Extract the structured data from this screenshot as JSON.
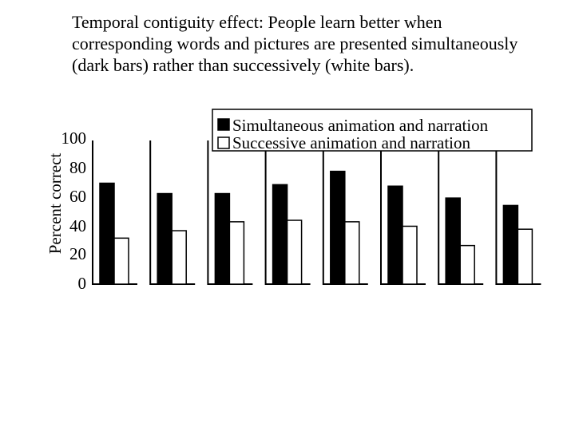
{
  "title_lines": [
    "Temporal contiguity effect:  People learn better when",
    "corresponding words and pictures are presented simultaneously",
    "(dark bars) rather than successively (white bars)."
  ],
  "chart_data": {
    "type": "bar",
    "title": "Temporal contiguity effect:  People learn better when corresponding words and pictures are presented simultaneously (dark bars) rather than successively (white bars).",
    "xlabel": "",
    "ylabel": "Percent correct",
    "ylim": [
      0,
      100
    ],
    "yticks": [
      0,
      20,
      40,
      60,
      80,
      100
    ],
    "grid": false,
    "legend_position": "top-right",
    "categories": [
      "",
      "",
      "",
      "",
      "",
      "",
      "",
      ""
    ],
    "series": [
      {
        "name": "Simultaneous animation and narration",
        "color": "#000000",
        "values": [
          68,
          61,
          61,
          67,
          76,
          66,
          58,
          53
        ]
      },
      {
        "name": "Successive animation and narration",
        "color": "#ffffff",
        "values": [
          31,
          36,
          42,
          43,
          42,
          39,
          26,
          37
        ]
      }
    ]
  }
}
